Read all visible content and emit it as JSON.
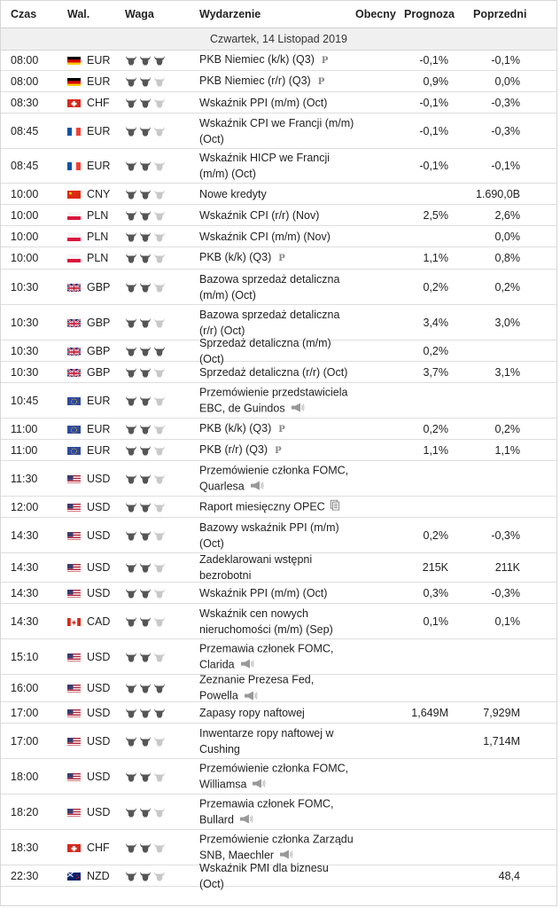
{
  "columns": {
    "time": "Czas",
    "currency": "Wal.",
    "importance": "Waga",
    "event": "Wydarzenie",
    "actual": "Obecny",
    "forecast": "Prognoza",
    "previous": "Poprzedni"
  },
  "date_label": "Czwartek, 14 Listopad 2019",
  "colors": {
    "bull_active": "#555555",
    "bull_inactive": "#c8c8c8",
    "border": "#dedede",
    "date_band": "#f0f0f0"
  },
  "rows": [
    {
      "time": "08:00",
      "flag": "DE",
      "currency": "EUR",
      "importance": 3,
      "event": "PKB Niemiec (k/k) (Q3)",
      "marker": "P",
      "forecast": "-0,1%",
      "previous": "-0,1%"
    },
    {
      "time": "08:00",
      "flag": "DE",
      "currency": "EUR",
      "importance": 2,
      "event": "PKB Niemiec (r/r) (Q3)",
      "marker": "P",
      "forecast": "0,9%",
      "previous": "0,0%"
    },
    {
      "time": "08:30",
      "flag": "CH",
      "currency": "CHF",
      "importance": 2,
      "event": "Wskaźnik PPI (m/m) (Oct)",
      "marker": "",
      "forecast": "-0,1%",
      "previous": "-0,3%"
    },
    {
      "time": "08:45",
      "flag": "FR",
      "currency": "EUR",
      "importance": 2,
      "event": "Wskaźnik CPI we Francji (m/m) (Oct)",
      "marker": "",
      "forecast": "-0,1%",
      "previous": "-0,3%"
    },
    {
      "time": "08:45",
      "flag": "FR",
      "currency": "EUR",
      "importance": 2,
      "event": "Wskaźnik HICP we Francji (m/m) (Oct)",
      "marker": "",
      "forecast": "-0,1%",
      "previous": "-0,1%"
    },
    {
      "time": "10:00",
      "flag": "CN",
      "currency": "CNY",
      "importance": 2,
      "event": "Nowe kredyty",
      "marker": "",
      "forecast": "",
      "previous": "1.690,0B"
    },
    {
      "time": "10:00",
      "flag": "PL",
      "currency": "PLN",
      "importance": 2,
      "event": "Wskaźnik CPI (r/r) (Nov)",
      "marker": "",
      "forecast": "2,5%",
      "previous": "2,6%"
    },
    {
      "time": "10:00",
      "flag": "PL",
      "currency": "PLN",
      "importance": 2,
      "event": "Wskaźnik CPI (m/m) (Nov)",
      "marker": "",
      "forecast": "",
      "previous": "0,0%"
    },
    {
      "time": "10:00",
      "flag": "PL",
      "currency": "PLN",
      "importance": 2,
      "event": "PKB (k/k) (Q3)",
      "marker": "P",
      "forecast": "1,1%",
      "previous": "0,8%"
    },
    {
      "time": "10:30",
      "flag": "GB",
      "currency": "GBP",
      "importance": 2,
      "event": "Bazowa sprzedaż detaliczna (m/m) (Oct)",
      "marker": "",
      "forecast": "0,2%",
      "previous": "0,2%"
    },
    {
      "time": "10:30",
      "flag": "GB",
      "currency": "GBP",
      "importance": 2,
      "event": "Bazowa sprzedaż detaliczna (r/r) (Oct)",
      "marker": "",
      "forecast": "3,4%",
      "previous": "3,0%"
    },
    {
      "time": "10:30",
      "flag": "GB",
      "currency": "GBP",
      "importance": 3,
      "event": "Sprzedaż detaliczna (m/m) (Oct)",
      "marker": "",
      "forecast": "0,2%",
      "previous": ""
    },
    {
      "time": "10:30",
      "flag": "GB",
      "currency": "GBP",
      "importance": 2,
      "event": "Sprzedaż detaliczna (r/r) (Oct)",
      "marker": "",
      "forecast": "3,7%",
      "previous": "3,1%"
    },
    {
      "time": "10:45",
      "flag": "EU",
      "currency": "EUR",
      "importance": 2,
      "event": "Przemówienie przedstawiciela EBC, de Guindos",
      "marker": "speech",
      "forecast": "",
      "previous": ""
    },
    {
      "time": "11:00",
      "flag": "EU",
      "currency": "EUR",
      "importance": 2,
      "event": "PKB (k/k) (Q3)",
      "marker": "P",
      "forecast": "0,2%",
      "previous": "0,2%"
    },
    {
      "time": "11:00",
      "flag": "EU",
      "currency": "EUR",
      "importance": 2,
      "event": "PKB (r/r) (Q3)",
      "marker": "P",
      "forecast": "1,1%",
      "previous": "1,1%"
    },
    {
      "time": "11:30",
      "flag": "US",
      "currency": "USD",
      "importance": 2,
      "event": "Przemówienie członka FOMC, Quarlesa",
      "marker": "speech",
      "forecast": "",
      "previous": ""
    },
    {
      "time": "12:00",
      "flag": "US",
      "currency": "USD",
      "importance": 2,
      "event": "Raport miesięczny OPEC",
      "marker": "doc",
      "forecast": "",
      "previous": ""
    },
    {
      "time": "14:30",
      "flag": "US",
      "currency": "USD",
      "importance": 2,
      "event": "Bazowy wskaźnik PPI (m/m) (Oct)",
      "marker": "",
      "forecast": "0,2%",
      "previous": "-0,3%"
    },
    {
      "time": "14:30",
      "flag": "US",
      "currency": "USD",
      "importance": 2,
      "event": "Zadeklarowani wstępni bezrobotni",
      "marker": "",
      "forecast": "215K",
      "previous": "211K"
    },
    {
      "time": "14:30",
      "flag": "US",
      "currency": "USD",
      "importance": 2,
      "event": "Wskaźnik PPI (m/m) (Oct)",
      "marker": "",
      "forecast": "0,3%",
      "previous": "-0,3%"
    },
    {
      "time": "14:30",
      "flag": "CA",
      "currency": "CAD",
      "importance": 2,
      "event": "Wskaźnik cen nowych nieruchomości (m/m) (Sep)",
      "marker": "",
      "forecast": "0,1%",
      "previous": "0,1%"
    },
    {
      "time": "15:10",
      "flag": "US",
      "currency": "USD",
      "importance": 2,
      "event": "Przemawia członek FOMC, Clarida",
      "marker": "speech",
      "forecast": "",
      "previous": ""
    },
    {
      "time": "16:00",
      "flag": "US",
      "currency": "USD",
      "importance": 3,
      "event": "Zeznanie Prezesa Fed, Powella",
      "marker": "speech",
      "forecast": "",
      "previous": ""
    },
    {
      "time": "17:00",
      "flag": "US",
      "currency": "USD",
      "importance": 3,
      "event": "Zapasy ropy naftowej",
      "marker": "",
      "forecast": "1,649M",
      "previous": "7,929M"
    },
    {
      "time": "17:00",
      "flag": "US",
      "currency": "USD",
      "importance": 2,
      "event": "Inwentarze ropy naftowej w Cushing",
      "marker": "",
      "forecast": "",
      "previous": "1,714M"
    },
    {
      "time": "18:00",
      "flag": "US",
      "currency": "USD",
      "importance": 2,
      "event": "Przemówienie członka FOMC, Williamsa",
      "marker": "speech",
      "forecast": "",
      "previous": ""
    },
    {
      "time": "18:20",
      "flag": "US",
      "currency": "USD",
      "importance": 2,
      "event": "Przemawia członek FOMC, Bullard",
      "marker": "speech",
      "forecast": "",
      "previous": ""
    },
    {
      "time": "18:30",
      "flag": "CH",
      "currency": "CHF",
      "importance": 2,
      "event": "Przemówienie członka Zarządu SNB, Maechler",
      "marker": "speech",
      "forecast": "",
      "previous": ""
    },
    {
      "time": "22:30",
      "flag": "NZ",
      "currency": "NZD",
      "importance": 2,
      "event": "Wskaźnik PMI dla biznesu (Oct)",
      "marker": "",
      "forecast": "",
      "previous": "48,4"
    }
  ]
}
